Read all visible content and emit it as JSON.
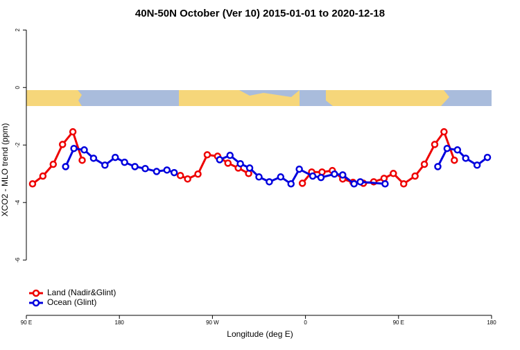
{
  "chart_data": {
    "type": "line",
    "title": "40N-50N October (Ver 10)   2015-01-01 to 2020-12-18",
    "x_label": "Longitude (deg E)",
    "y_label": "XCO2 - MLO trend (ppm)",
    "xlim": [
      90,
      540
    ],
    "ylim": [
      -7.9,
      2.2
    ],
    "xticks": [
      {
        "value": 90,
        "label": "90 E"
      },
      {
        "value": 180,
        "label": "180"
      },
      {
        "value": 270,
        "label": "90 W"
      },
      {
        "value": 360,
        "label": "0"
      },
      {
        "value": 450,
        "label": "90 E"
      },
      {
        "value": 540,
        "label": "180"
      }
    ],
    "yticks": [
      2,
      0,
      -2,
      -4,
      -6
    ],
    "legend": "bottom-left",
    "series": [
      {
        "name": "Land (Nadir&Glint)",
        "color": "#ee0000",
        "x": [
          96,
          106,
          116,
          125,
          135,
          144,
          null,
          239,
          246,
          256,
          265,
          275,
          285,
          295,
          305,
          null,
          357,
          366,
          376,
          386,
          396,
          406,
          416,
          426,
          436,
          445,
          455,
          466,
          475,
          485,
          494,
          504
        ],
        "values": [
          -3.35,
          -3.08,
          -2.67,
          -1.98,
          -1.54,
          -2.53,
          null,
          -3.06,
          -3.18,
          -3.01,
          -2.34,
          -2.39,
          -2.63,
          -2.8,
          -2.99,
          null,
          -3.33,
          -2.94,
          -2.94,
          -2.89,
          -3.18,
          -3.3,
          -3.33,
          -3.28,
          -3.16,
          -2.99,
          -3.35,
          -3.08,
          -2.67,
          -1.98,
          -1.54,
          -2.53
        ]
      },
      {
        "name": "Ocean (Glint)",
        "color": "#0000dd",
        "x": [
          128,
          136,
          146,
          155,
          166,
          176,
          185,
          195,
          205,
          216,
          226,
          233,
          null,
          277,
          287,
          297,
          306,
          315,
          325,
          336,
          346,
          354,
          367,
          375,
          388,
          396,
          407,
          413,
          437,
          null,
          488,
          497,
          507,
          515,
          526,
          536
        ],
        "values": [
          -2.75,
          -2.12,
          -2.17,
          -2.46,
          -2.7,
          -2.43,
          -2.6,
          -2.75,
          -2.82,
          -2.92,
          -2.87,
          -2.96,
          null,
          -2.51,
          -2.36,
          -2.65,
          -2.8,
          -3.11,
          -3.28,
          -3.11,
          -3.35,
          -2.84,
          -3.08,
          -3.13,
          -3.01,
          -3.04,
          -3.35,
          -3.28,
          -3.35,
          null,
          -2.75,
          -2.12,
          -2.17,
          -2.46,
          -2.7,
          -2.43
        ]
      }
    ]
  }
}
